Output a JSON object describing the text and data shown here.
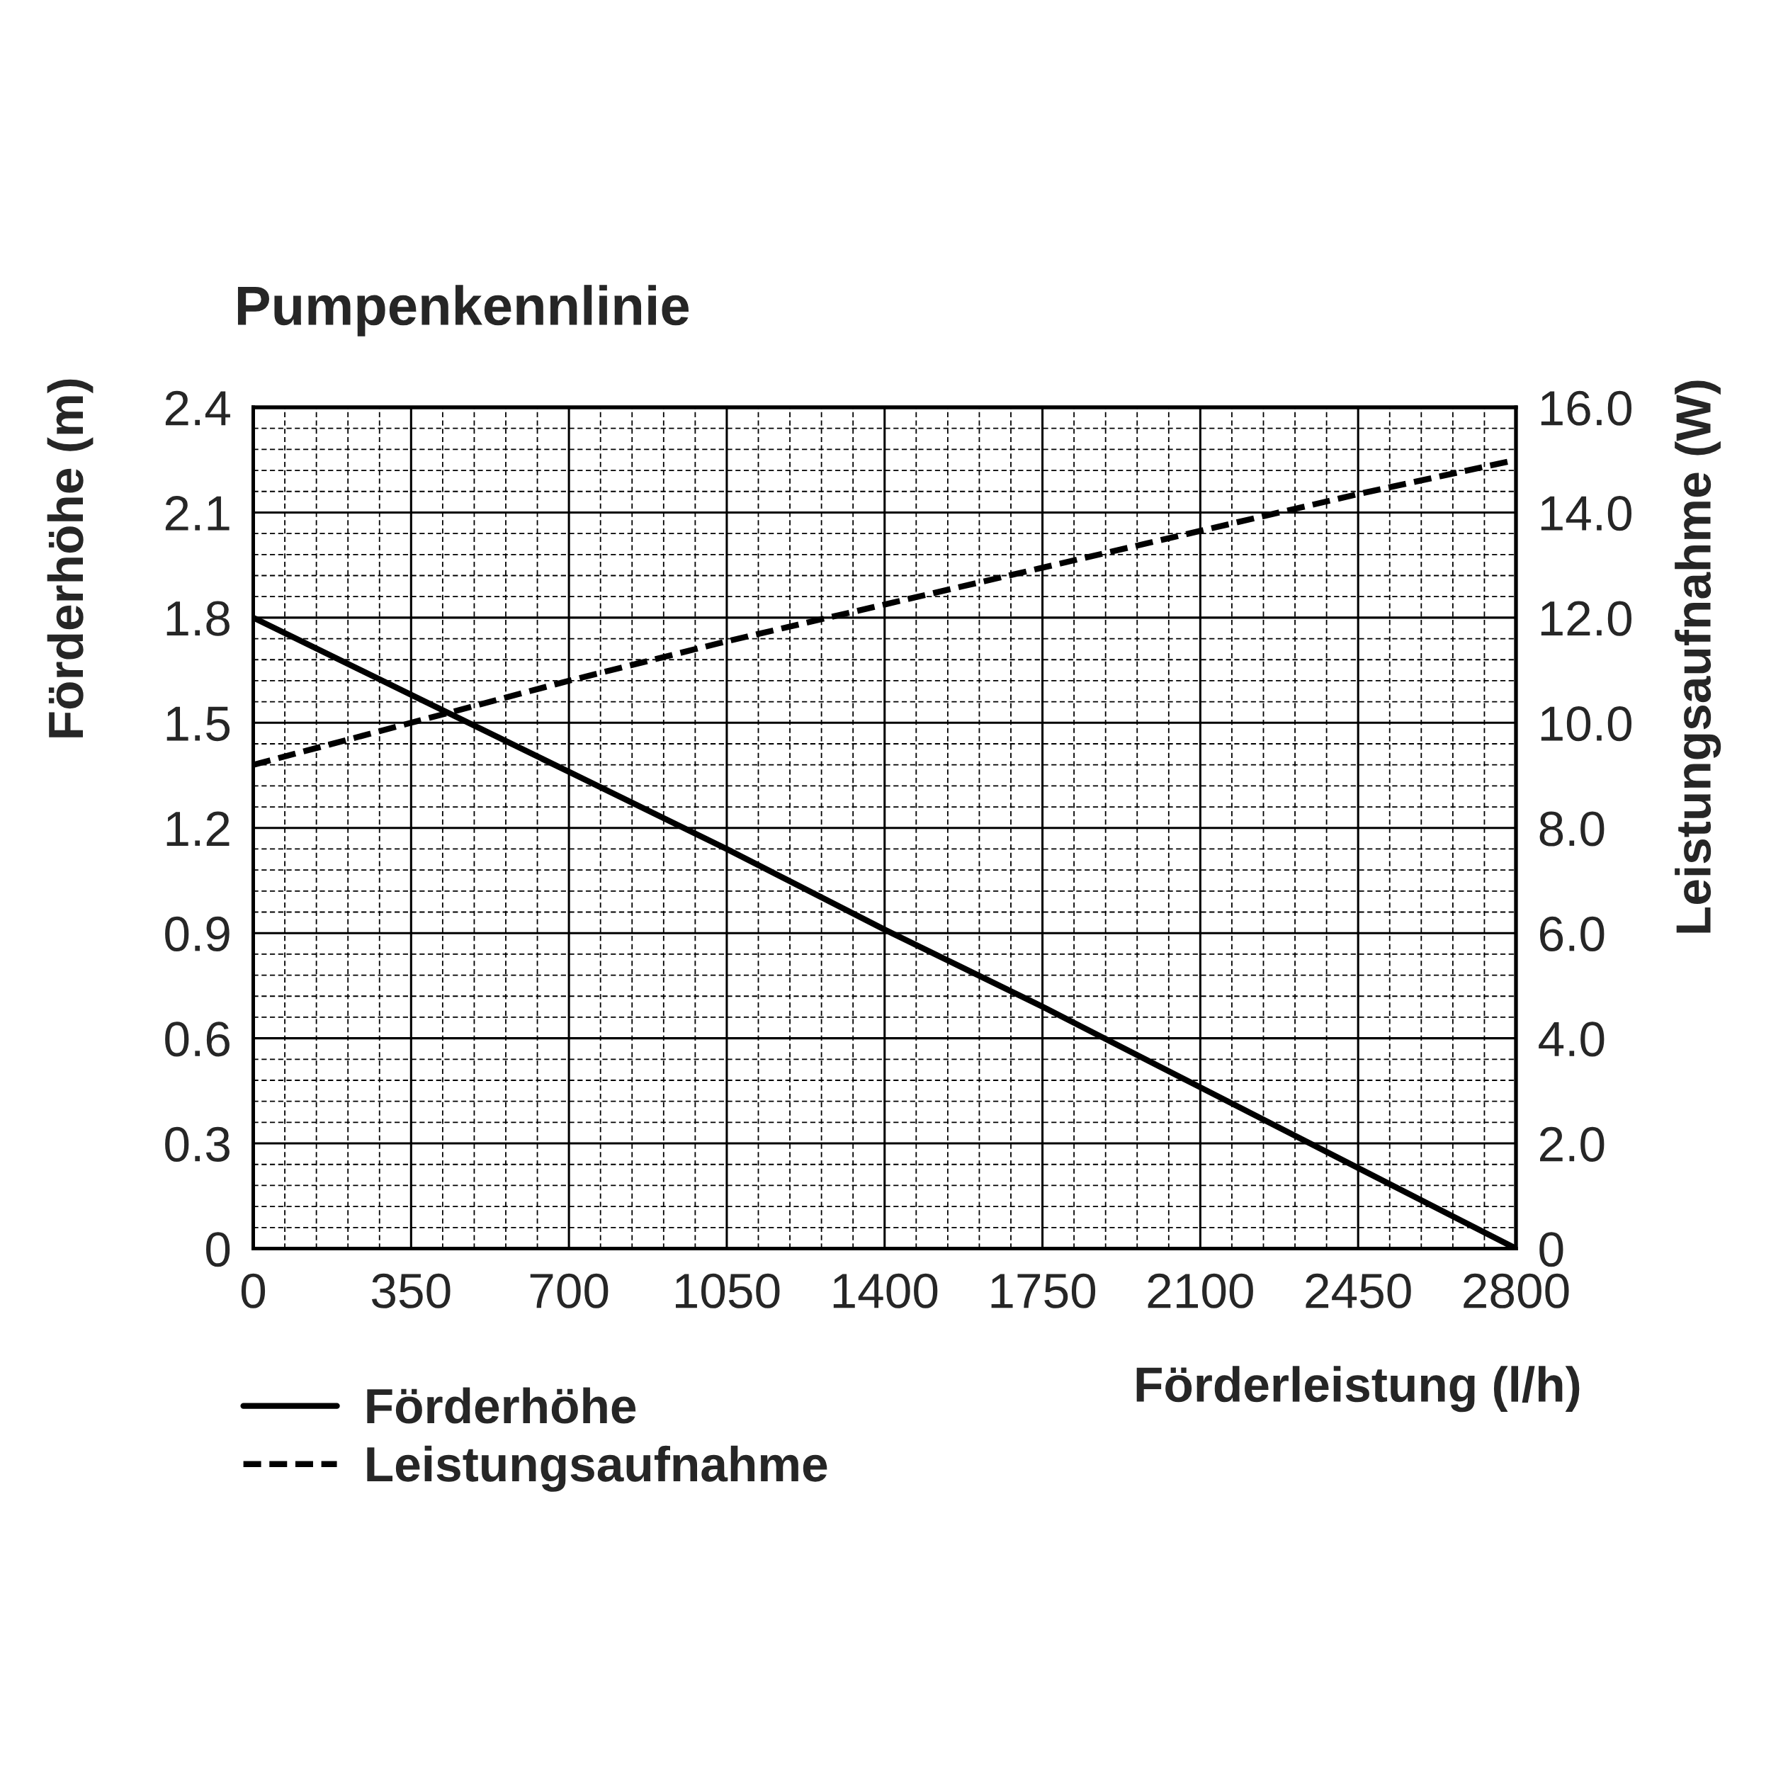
{
  "chart_data": {
    "type": "line",
    "title": "Pumpenkennlinie",
    "xlabel": "Förderleistung (l/h)",
    "ylabel": "Förderhöhe (m)",
    "y2label": "Leistungsaufnahme (W)",
    "x": [
      0,
      350,
      700,
      1050,
      1400,
      1750,
      2100,
      2450,
      2800
    ],
    "series": [
      {
        "name": "Förderhöhe",
        "color": "#000000",
        "line_style": "solid",
        "values": [
          1.8,
          1.58,
          1.36,
          1.14,
          0.91,
          0.69,
          0.46,
          0.23,
          0
        ]
      },
      {
        "name": "Leistungsaufnahme",
        "color": "#000000",
        "line_style": "dashed",
        "axis": "y2",
        "values": [
          9.2,
          10.0,
          10.8,
          11.55,
          12.25,
          12.95,
          13.65,
          14.35,
          15.0
        ]
      }
    ],
    "xlim": [
      0,
      2800
    ],
    "xticks": [
      0,
      {
        "value": 70,
        "label": null
      },
      {
        "value": 140,
        "label": null
      },
      {
        "value": 210,
        "label": null
      },
      {
        "value": 280,
        "label": null
      },
      350,
      {
        "value": 420,
        "label": null
      },
      {
        "value": 490,
        "label": null
      },
      {
        "value": 560,
        "label": null
      },
      {
        "value": 630,
        "label": null
      },
      700,
      {
        "value": 770,
        "label": null
      },
      {
        "value": 840,
        "label": null
      },
      {
        "value": 910,
        "label": null
      },
      {
        "value": 980,
        "label": null
      },
      1050,
      {
        "value": 1120,
        "label": null
      },
      {
        "value": 1190,
        "label": null
      },
      {
        "value": 1260,
        "label": null
      },
      {
        "value": 1330,
        "label": null
      },
      1400,
      {
        "value": 1470,
        "label": null
      },
      {
        "value": 1540,
        "label": null
      },
      {
        "value": 1610,
        "label": null
      },
      {
        "value": 1680,
        "label": null
      },
      1750,
      {
        "value": 1820,
        "label": null
      },
      {
        "value": 1890,
        "label": null
      },
      {
        "value": 1960,
        "label": null
      },
      {
        "value": 2030,
        "label": null
      },
      2100,
      {
        "value": 2170,
        "label": null
      },
      {
        "value": 2240,
        "label": null
      },
      {
        "value": 2310,
        "label": null
      },
      {
        "value": 2380,
        "label": null
      },
      2450,
      {
        "value": 2520,
        "label": null
      },
      {
        "value": 2590,
        "label": null
      },
      {
        "value": 2660,
        "label": null
      },
      {
        "value": 2730,
        "label": null
      },
      2800
    ],
    "ylim": [
      0,
      2.4
    ],
    "yticks": [
      0,
      {
        "value": 0.06,
        "label": null
      },
      {
        "value": 0.12,
        "label": null
      },
      {
        "value": 0.18,
        "label": null
      },
      {
        "value": 0.24,
        "label": null
      },
      0.3,
      {
        "value": 0.36,
        "label": null
      },
      {
        "value": 0.42,
        "label": null
      },
      {
        "value": 0.48,
        "label": null
      },
      {
        "value": 0.54,
        "label": null
      },
      0.6,
      {
        "value": 0.66,
        "label": null
      },
      {
        "value": 0.72,
        "label": null
      },
      {
        "value": 0.78,
        "label": null
      },
      {
        "value": 0.84,
        "label": null
      },
      0.9,
      {
        "value": 0.96,
        "label": null
      },
      {
        "value": 1.02,
        "label": null
      },
      {
        "value": 1.08,
        "label": null
      },
      {
        "value": 1.14,
        "label": null
      },
      1.2,
      {
        "value": 1.26,
        "label": null
      },
      {
        "value": 1.32,
        "label": null
      },
      {
        "value": 1.38,
        "label": null
      },
      {
        "value": 1.44,
        "label": null
      },
      1.5,
      {
        "value": 1.56,
        "label": null
      },
      {
        "value": 1.62,
        "label": null
      },
      {
        "value": 1.68,
        "label": null
      },
      {
        "value": 1.74,
        "label": null
      },
      1.8,
      {
        "value": 1.86,
        "label": null
      },
      {
        "value": 1.92,
        "label": null
      },
      {
        "value": 1.98,
        "label": null
      },
      {
        "value": 2.04,
        "label": null
      },
      2.1,
      {
        "value": 2.16,
        "label": null
      },
      {
        "value": 2.22,
        "label": null
      },
      {
        "value": 2.28,
        "label": null
      },
      {
        "value": 2.34,
        "label": null
      },
      2.4
    ],
    "y2lim": [
      0,
      16
    ],
    "y2ticks": [
      0,
      {
        "value": 2,
        "label": "2.0"
      },
      {
        "value": 4,
        "label": "4.0"
      },
      {
        "value": 6,
        "label": "6.0"
      },
      {
        "value": 8,
        "label": "8.0"
      },
      {
        "value": 10,
        "label": "10.0"
      },
      {
        "value": 12,
        "label": "12.0"
      },
      {
        "value": 14,
        "label": "14.0"
      },
      {
        "value": 16,
        "label": "16.0"
      }
    ],
    "grid": true,
    "legend": "bottom left"
  }
}
